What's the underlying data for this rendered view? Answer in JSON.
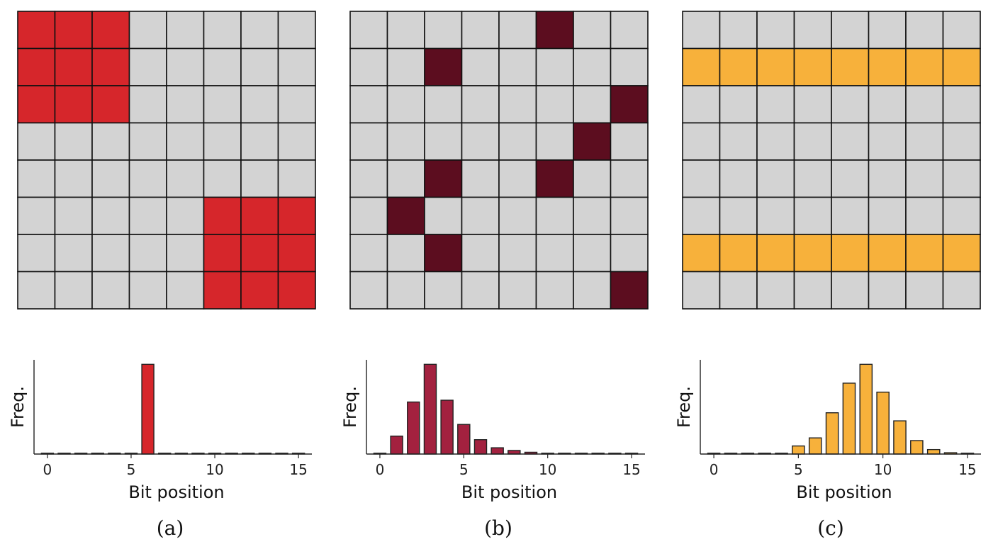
{
  "colors": {
    "empty_cell": "#d3d3d3",
    "grid_line": "#111111",
    "panel_a": "#d6262b",
    "panel_b_grid": "#5c0d1f",
    "panel_b_bar": "#a3213f",
    "panel_c": "#f7b13b"
  },
  "chart_data": [
    {
      "type": "heatmap",
      "caption": "(a)",
      "rows": 8,
      "cols": 8,
      "color_key": "panel_a",
      "filled_cells": [
        [
          0,
          0
        ],
        [
          0,
          1
        ],
        [
          0,
          2
        ],
        [
          1,
          0
        ],
        [
          1,
          1
        ],
        [
          1,
          2
        ],
        [
          2,
          0
        ],
        [
          2,
          1
        ],
        [
          2,
          2
        ],
        [
          5,
          5
        ],
        [
          5,
          6
        ],
        [
          5,
          7
        ],
        [
          6,
          5
        ],
        [
          6,
          6
        ],
        [
          6,
          7
        ],
        [
          7,
          5
        ],
        [
          7,
          6
        ],
        [
          7,
          7
        ]
      ]
    },
    {
      "type": "heatmap",
      "caption": "(b)",
      "rows": 8,
      "cols": 8,
      "color_key": "panel_b_grid",
      "filled_cells": [
        [
          0,
          5
        ],
        [
          1,
          2
        ],
        [
          2,
          7
        ],
        [
          3,
          6
        ],
        [
          4,
          2
        ],
        [
          4,
          5
        ],
        [
          5,
          1
        ],
        [
          6,
          2
        ],
        [
          7,
          7
        ]
      ]
    },
    {
      "type": "heatmap",
      "caption": "(c)",
      "rows": 8,
      "cols": 8,
      "color_key": "panel_c",
      "filled_cells": [
        [
          1,
          0
        ],
        [
          1,
          1
        ],
        [
          1,
          2
        ],
        [
          1,
          3
        ],
        [
          1,
          4
        ],
        [
          1,
          5
        ],
        [
          1,
          6
        ],
        [
          1,
          7
        ],
        [
          6,
          0
        ],
        [
          6,
          1
        ],
        [
          6,
          2
        ],
        [
          6,
          3
        ],
        [
          6,
          4
        ],
        [
          6,
          5
        ],
        [
          6,
          6
        ],
        [
          6,
          7
        ]
      ]
    },
    {
      "type": "bar",
      "caption": "(a)",
      "color_key": "panel_a",
      "xlabel": "Bit position",
      "ylabel": "Freq.",
      "x": [
        0,
        1,
        2,
        3,
        4,
        5,
        6,
        7,
        8,
        9,
        10,
        11,
        12,
        13,
        14,
        15
      ],
      "values": [
        0,
        0,
        0,
        0,
        0,
        0,
        1.0,
        0,
        0,
        0,
        0,
        0,
        0,
        0,
        0,
        0
      ],
      "xticks": [
        0,
        5,
        10,
        15
      ],
      "xlim": [
        -0.8,
        15.8
      ],
      "ylim": [
        0,
        1.05
      ]
    },
    {
      "type": "bar",
      "caption": "(b)",
      "color_key": "panel_b_bar",
      "xlabel": "Bit position",
      "ylabel": "Freq.",
      "x": [
        0,
        1,
        2,
        3,
        4,
        5,
        6,
        7,
        8,
        9,
        10,
        11,
        12,
        13,
        14,
        15
      ],
      "values": [
        0,
        0.2,
        0.58,
        1.0,
        0.6,
        0.33,
        0.16,
        0.07,
        0.04,
        0.02,
        0.005,
        0.003,
        0.002,
        0.001,
        0.001,
        0
      ],
      "xticks": [
        0,
        5,
        10,
        15
      ],
      "xlim": [
        -0.8,
        15.8
      ],
      "ylim": [
        0,
        1.05
      ]
    },
    {
      "type": "bar",
      "caption": "(c)",
      "color_key": "panel_c",
      "xlabel": "Bit position",
      "ylabel": "Freq.",
      "x": [
        0,
        1,
        2,
        3,
        4,
        5,
        6,
        7,
        8,
        9,
        10,
        11,
        12,
        13,
        14,
        15
      ],
      "values": [
        0,
        0,
        0,
        0,
        0.005,
        0.09,
        0.18,
        0.46,
        0.79,
        1.0,
        0.69,
        0.37,
        0.15,
        0.05,
        0.015,
        0.005
      ],
      "xticks": [
        0,
        5,
        10,
        15
      ],
      "xlim": [
        -0.8,
        15.8
      ],
      "ylim": [
        0,
        1.05
      ]
    }
  ]
}
